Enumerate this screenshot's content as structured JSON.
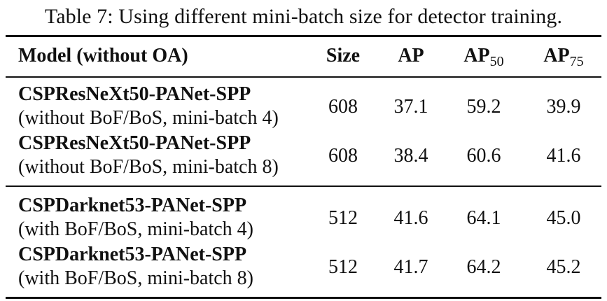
{
  "caption": "Table 7: Using different mini-batch size for detector training.",
  "header": {
    "model": "Model (without OA)",
    "size": "Size",
    "ap": "AP",
    "ap50_base": "AP",
    "ap50_sub": "50",
    "ap75_base": "AP",
    "ap75_sub": "75"
  },
  "rows": [
    {
      "name": "CSPResNeXt50-PANet-SPP",
      "desc": "(without BoF/BoS, mini-batch 4)",
      "size": "608",
      "ap": "37.1",
      "ap50": "59.2",
      "ap75": "39.9"
    },
    {
      "name": "CSPResNeXt50-PANet-SPP",
      "desc": "(without BoF/BoS, mini-batch 8)",
      "size": "608",
      "ap": "38.4",
      "ap50": "60.6",
      "ap75": "41.6"
    },
    {
      "name": "CSPDarknet53-PANet-SPP",
      "desc": "(with BoF/BoS, mini-batch 4)",
      "size": "512",
      "ap": "41.6",
      "ap50": "64.1",
      "ap75": "45.0"
    },
    {
      "name": "CSPDarknet53-PANet-SPP",
      "desc": "(with BoF/BoS, mini-batch 8)",
      "size": "512",
      "ap": "41.7",
      "ap50": "64.2",
      "ap75": "45.2"
    }
  ]
}
